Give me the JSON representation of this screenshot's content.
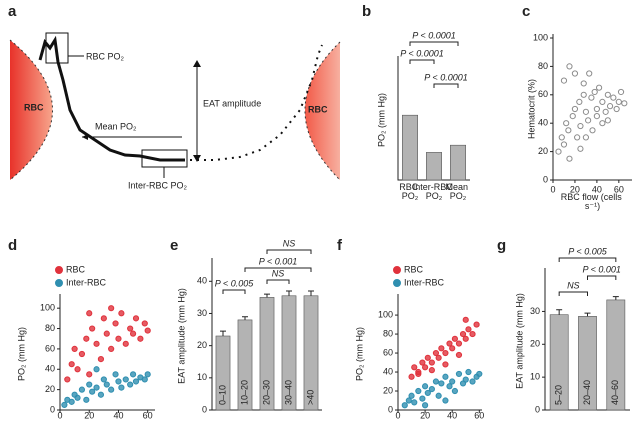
{
  "diagram": {
    "panel": "a",
    "labels": [
      "RBC PO₂",
      "RBC",
      "RBC",
      "Mean PO₂",
      "EAT amplitude",
      "Inter-RBC PO₂"
    ]
  },
  "chart_data": [
    {
      "panel": "b",
      "type": "bar",
      "y_label": "PO₂ (mm Hg)",
      "categories": [
        "RBC PO₂",
        "Inter-RBC PO₂",
        "Mean PO₂"
      ],
      "values": [
        54,
        23,
        29
      ],
      "color": "#b3b3b3",
      "ylim": [
        0,
        100
      ],
      "annotations": [
        "P < 0.0001",
        "P < 0.0001",
        "P < 0.0001"
      ]
    },
    {
      "panel": "c",
      "type": "scatter",
      "x_label": "RBC flow (cells s⁻¹)",
      "y_label": "Hematocrit (%)",
      "xlim": [
        0,
        72
      ],
      "ylim": [
        0,
        100
      ],
      "xticks": [
        0,
        20,
        40,
        60
      ],
      "yticks": [
        0,
        20,
        40,
        60,
        80,
        100
      ],
      "series": [
        {
          "color": "#8c8c8c",
          "x": [
            5,
            8,
            10,
            12,
            14,
            15,
            18,
            20,
            22,
            24,
            25,
            28,
            30,
            32,
            35,
            36,
            38,
            40,
            42,
            45,
            48,
            50,
            52,
            55,
            58,
            60,
            62,
            65,
            10,
            15,
            20,
            25,
            30,
            40,
            50,
            28,
            33,
            45
          ],
          "values": [
            20,
            30,
            25,
            40,
            35,
            15,
            45,
            50,
            30,
            55,
            38,
            60,
            48,
            42,
            58,
            35,
            62,
            50,
            65,
            55,
            48,
            60,
            52,
            58,
            50,
            55,
            62,
            54,
            70,
            80,
            75,
            22,
            30,
            45,
            42,
            68,
            75,
            40
          ]
        }
      ]
    },
    {
      "panel": "d",
      "type": "scatter",
      "y_label": "PO₂ (mm Hg)",
      "xlim": [
        0,
        65
      ],
      "ylim": [
        0,
        110
      ],
      "xticks": [
        0,
        20,
        40,
        60
      ],
      "yticks": [
        0,
        20,
        40,
        60,
        80,
        100
      ],
      "series": [
        {
          "name": "RBC",
          "color": "#e0323c",
          "x": [
            5,
            8,
            10,
            12,
            15,
            18,
            20,
            22,
            25,
            28,
            30,
            32,
            35,
            38,
            40,
            42,
            45,
            48,
            50,
            52,
            55,
            58,
            60,
            20,
            35
          ],
          "values": [
            30,
            45,
            60,
            40,
            55,
            70,
            35,
            80,
            65,
            50,
            90,
            75,
            60,
            85,
            70,
            95,
            65,
            80,
            75,
            90,
            70,
            85,
            78,
            95,
            100
          ]
        },
        {
          "name": "Inter-RBC",
          "color": "#2f8fb0",
          "x": [
            3,
            5,
            8,
            10,
            12,
            15,
            18,
            20,
            22,
            25,
            28,
            30,
            32,
            35,
            38,
            40,
            42,
            45,
            48,
            50,
            52,
            55,
            58,
            60,
            25
          ],
          "values": [
            5,
            10,
            8,
            15,
            12,
            20,
            10,
            25,
            18,
            22,
            15,
            30,
            25,
            20,
            35,
            28,
            22,
            30,
            25,
            35,
            28,
            32,
            30,
            35,
            40
          ]
        }
      ]
    },
    {
      "panel": "e",
      "type": "bar",
      "y_label": "EAT amplitude (mm Hg)",
      "categories": [
        "0–10",
        "10–20",
        "20–30",
        "30–40",
        ">40"
      ],
      "values": [
        23,
        28,
        35,
        35.5,
        35.5
      ],
      "errors": [
        1.5,
        1,
        1,
        1.5,
        1.5
      ],
      "color": "#b3b3b3",
      "ylim": [
        0,
        46
      ],
      "yticks": [
        0,
        10,
        20,
        30,
        40
      ],
      "annotations": [
        "P < 0.005",
        "P < 0.001",
        "NS",
        "NS"
      ]
    },
    {
      "panel": "f",
      "type": "scatter",
      "y_label": "PO₂ (mm Hg)",
      "xlim": [
        0,
        62
      ],
      "ylim": [
        0,
        118
      ],
      "xticks": [
        0,
        20,
        40,
        60
      ],
      "yticks": [
        0,
        20,
        40,
        60,
        80,
        100
      ],
      "series": [
        {
          "name": "RBC",
          "color": "#e0323c",
          "x": [
            10,
            12,
            15,
            18,
            20,
            22,
            25,
            28,
            30,
            32,
            35,
            38,
            40,
            42,
            45,
            48,
            50,
            52,
            55,
            58,
            25,
            35,
            45,
            15,
            50
          ],
          "values": [
            35,
            45,
            40,
            50,
            45,
            55,
            50,
            60,
            55,
            65,
            60,
            70,
            65,
            75,
            70,
            80,
            75,
            85,
            80,
            90,
            42,
            48,
            58,
            38,
            95
          ]
        },
        {
          "name": "Inter-RBC",
          "color": "#2f8fb0",
          "x": [
            5,
            8,
            10,
            12,
            15,
            18,
            20,
            22,
            25,
            28,
            30,
            32,
            35,
            38,
            40,
            42,
            45,
            48,
            50,
            52,
            55,
            58,
            60,
            20,
            35
          ],
          "values": [
            5,
            10,
            15,
            8,
            20,
            12,
            25,
            18,
            22,
            30,
            15,
            28,
            35,
            25,
            30,
            20,
            38,
            28,
            32,
            40,
            30,
            35,
            38,
            5,
            10
          ]
        }
      ]
    },
    {
      "panel": "g",
      "type": "bar",
      "y_label": "EAT amplitude (mm Hg)",
      "categories": [
        "5–20",
        "20–40",
        "40–60"
      ],
      "values": [
        29,
        28.5,
        33.5
      ],
      "errors": [
        1.5,
        1,
        1
      ],
      "color": "#b3b3b3",
      "ylim": [
        0,
        42
      ],
      "yticks": [
        0,
        10,
        20,
        30
      ],
      "annotations": [
        "NS",
        "P < 0.001",
        "P < 0.005"
      ]
    }
  ]
}
